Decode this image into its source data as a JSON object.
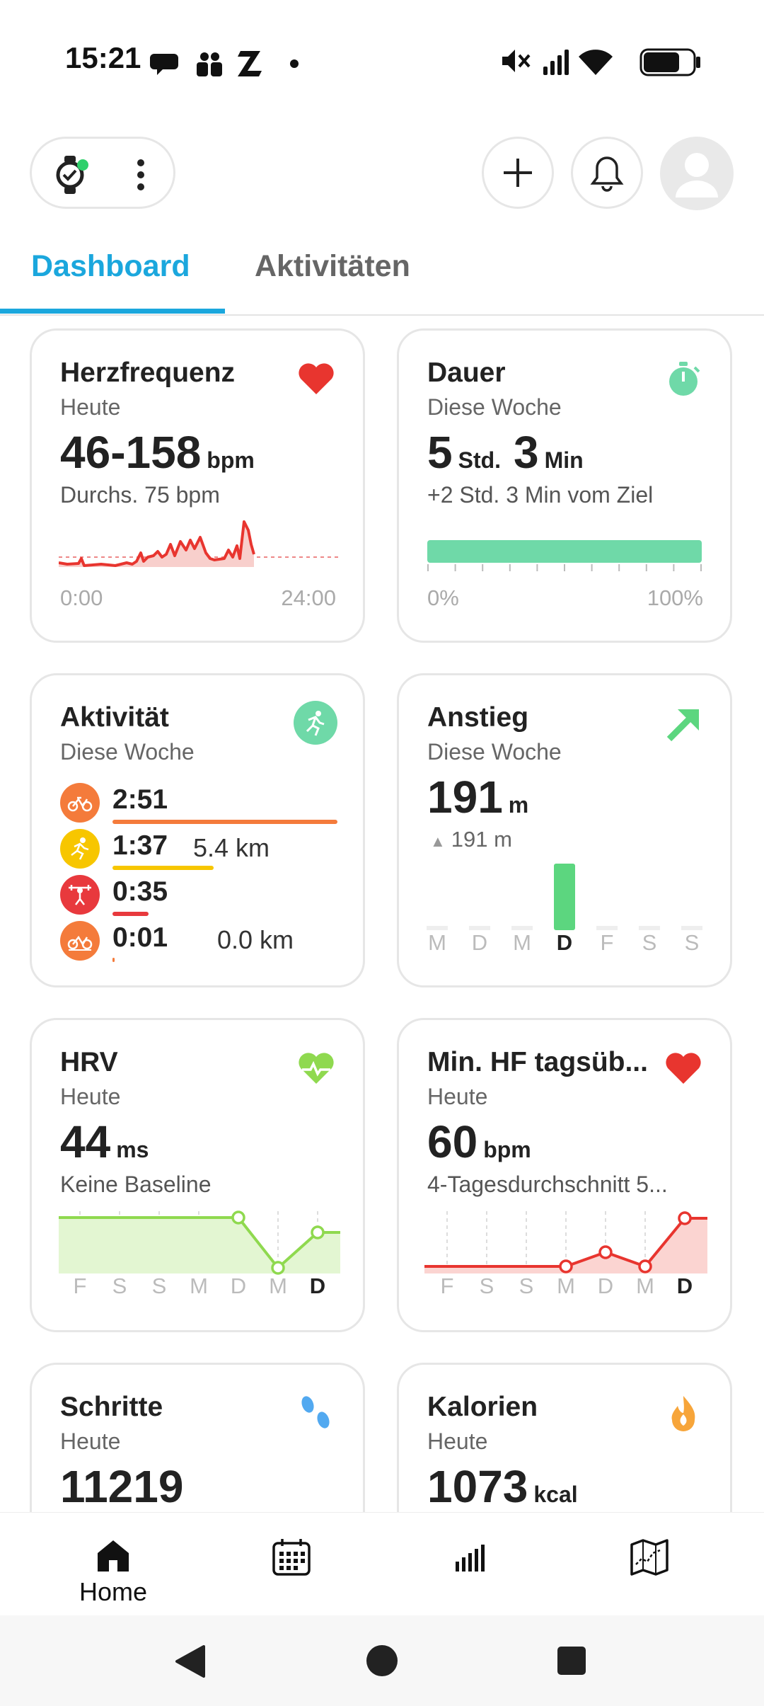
{
  "status_bar": {
    "time": "15:21"
  },
  "tabs": [
    {
      "label": "Dashboard",
      "active": true
    },
    {
      "label": "Aktivitäten",
      "active": false
    }
  ],
  "cards": {
    "heart_rate": {
      "title": "Herzfrequenz",
      "subtitle": "Heute",
      "value": "46-158",
      "unit": "bpm",
      "note": "Durchs. 75 bpm",
      "x_start": "0:00",
      "x_end": "24:00",
      "color": "#e8352f"
    },
    "duration": {
      "title": "Dauer",
      "subtitle": "Diese Woche",
      "value_hours": "5",
      "unit_hours": "Std.",
      "value_min": "3",
      "unit_min": "Min",
      "note": "+2 Std. 3 Min vom Ziel",
      "progress": 1.0,
      "axis_start": "0%",
      "axis_end": "100%",
      "color": "#6fd9a8"
    },
    "activity": {
      "title": "Aktivität",
      "subtitle": "Diese Woche",
      "items": [
        {
          "time": "2:51",
          "distance": "",
          "color": "#f47b3b",
          "icon": "cycling-icon",
          "share": 1.0
        },
        {
          "time": "1:37",
          "distance": "5.4 km",
          "color": "#f7c600",
          "icon": "running-icon",
          "share": 0.45
        },
        {
          "time": "0:35",
          "distance": "",
          "color": "#e8393d",
          "icon": "strength-icon",
          "share": 0.16
        },
        {
          "time": "0:01",
          "distance": "0.0 km",
          "color": "#f47b3b",
          "icon": "indoor-cycling-icon",
          "share": 0.01
        }
      ]
    },
    "ascent": {
      "title": "Anstieg",
      "subtitle": "Diese Woche",
      "value": "191",
      "unit": "m",
      "note": "191 m",
      "days": [
        "M",
        "D",
        "M",
        "D",
        "F",
        "S",
        "S"
      ],
      "current_day_index": 3,
      "values": [
        0,
        0,
        0,
        191,
        0,
        0,
        0
      ],
      "color": "#5cd67f"
    },
    "hrv": {
      "title": "HRV",
      "subtitle": "Heute",
      "value": "44",
      "unit": "ms",
      "note": "Keine Baseline",
      "days": [
        "F",
        "S",
        "S",
        "M",
        "D",
        "M",
        "D"
      ],
      "current_day_index": 6,
      "color": "#8fd94f"
    },
    "min_hr": {
      "title": "Min. HF tagsüb...",
      "subtitle": "Heute",
      "value": "60",
      "unit": "bpm",
      "note": "4-Tagesdurchschnitt 5...",
      "days": [
        "F",
        "S",
        "S",
        "M",
        "D",
        "M",
        "D"
      ],
      "current_day_index": 6,
      "color": "#e8352f"
    },
    "steps": {
      "title": "Schritte",
      "subtitle": "Heute",
      "value": "11219"
    },
    "calories": {
      "title": "Kalorien",
      "subtitle": "Heute",
      "value": "1073",
      "unit": "kcal"
    }
  },
  "bottom_nav": [
    {
      "label": "Home",
      "icon": "home-icon",
      "active": true
    },
    {
      "label": "",
      "icon": "calendar-icon"
    },
    {
      "label": "",
      "icon": "statistics-icon"
    },
    {
      "label": "",
      "icon": "map-icon"
    }
  ]
}
